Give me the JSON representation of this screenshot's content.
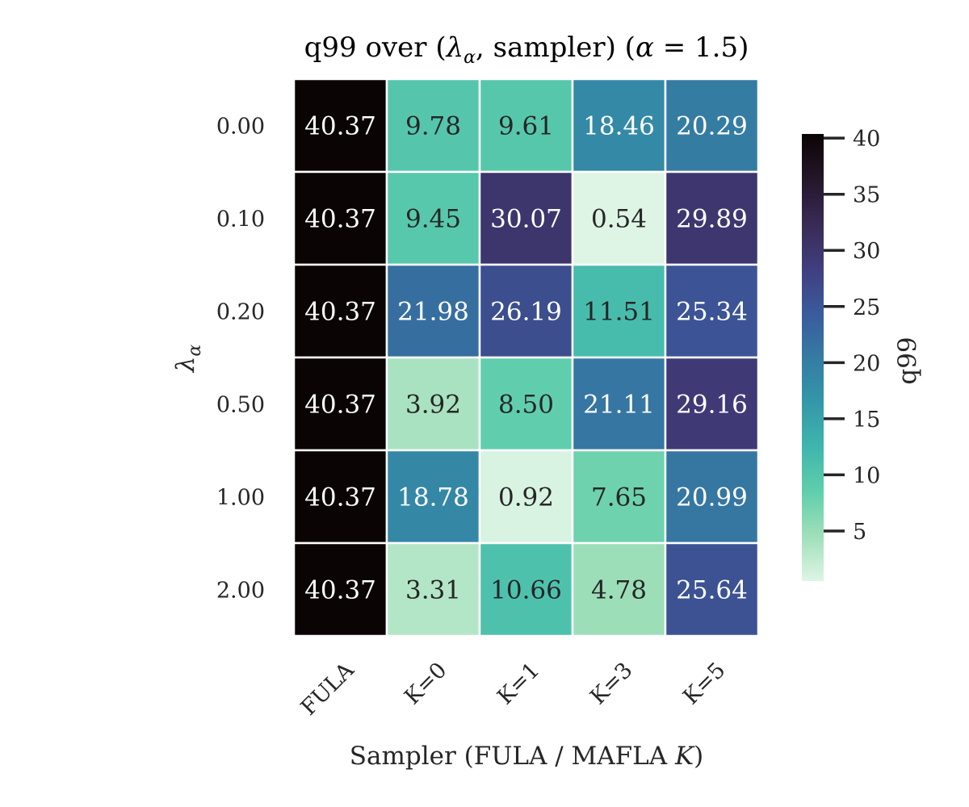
{
  "chart_data": {
    "type": "heatmap",
    "title": "q99 over (λ_α, sampler) (α = 1.5)",
    "title_parts": {
      "prefix": "q99 over (",
      "lambda_symbol": "λ",
      "lambda_sub": "α",
      "middle": ", sampler) (",
      "alpha_symbol": "α",
      "alpha_eq": " = 1.5",
      "suffix": ")"
    },
    "xlabel": "Sampler (FULA / MAFLA K)",
    "xlabel_parts": {
      "prefix": "Sampler (FULA / MAFLA ",
      "italic": "K",
      "suffix": ")"
    },
    "ylabel": "λ_α",
    "ylabel_parts": {
      "symbol": "λ",
      "sub": "α"
    },
    "x_categories": [
      "FULA",
      "K=0",
      "K=1",
      "K=3",
      "K=5"
    ],
    "y_categories": [
      "0.00",
      "0.10",
      "0.20",
      "0.50",
      "1.00",
      "2.00"
    ],
    "values": [
      [
        40.37,
        9.78,
        9.61,
        18.46,
        20.29
      ],
      [
        40.37,
        9.45,
        30.07,
        0.54,
        29.89
      ],
      [
        40.37,
        21.98,
        26.19,
        11.51,
        25.34
      ],
      [
        40.37,
        3.92,
        8.5,
        21.11,
        29.16
      ],
      [
        40.37,
        18.78,
        0.92,
        7.65,
        20.99
      ],
      [
        40.37,
        3.31,
        10.66,
        4.78,
        25.64
      ]
    ],
    "value_labels": [
      [
        "40.37",
        "9.78",
        "9.61",
        "18.46",
        "20.29"
      ],
      [
        "40.37",
        "9.45",
        "30.07",
        "0.54",
        "29.89"
      ],
      [
        "40.37",
        "21.98",
        "26.19",
        "11.51",
        "25.34"
      ],
      [
        "40.37",
        "3.92",
        "8.50",
        "21.11",
        "29.16"
      ],
      [
        "40.37",
        "18.78",
        "0.92",
        "7.65",
        "20.99"
      ],
      [
        "40.37",
        "3.31",
        "10.66",
        "4.78",
        "25.64"
      ]
    ],
    "colorbar": {
      "label": "q99",
      "range": [
        0.54,
        40.37
      ],
      "ticks": [
        5,
        10,
        15,
        20,
        25,
        30,
        35,
        40
      ],
      "tick_labels": [
        "5",
        "10",
        "15",
        "20",
        "25",
        "30",
        "35",
        "40"
      ],
      "colormap": "mako_r",
      "stops": [
        "#def5e5",
        "#a0dfb9",
        "#60ceac",
        "#3fb6ad",
        "#3497a9",
        "#357ba3",
        "#3a5a9c",
        "#413e7e",
        "#382a54",
        "#241628",
        "#0b0405"
      ]
    }
  }
}
